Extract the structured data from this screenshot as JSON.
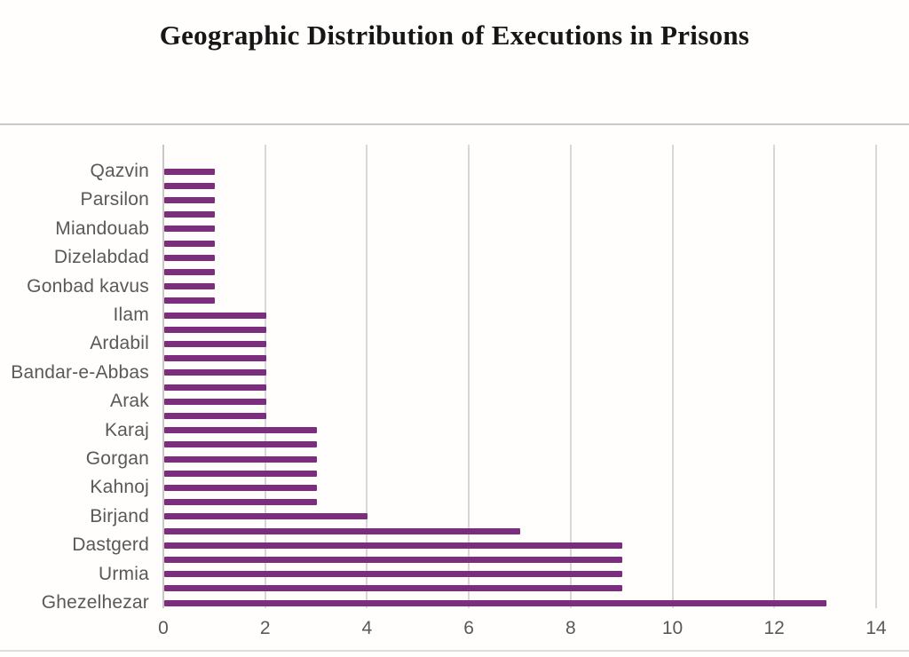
{
  "page": {
    "background": "#FFFFFF"
  },
  "chart_data": {
    "type": "bar",
    "orientation": "horizontal",
    "title": "Geographic Distribution of Executions in Prisons",
    "xlabel": "",
    "ylabel": "",
    "xlim": [
      0,
      14
    ],
    "x_ticks": [
      0,
      2,
      4,
      6,
      8,
      10,
      12,
      14
    ],
    "grid": true,
    "legend": "none",
    "label_skip": "category labels shown on every other bar",
    "bar_color": "#7B2D7E",
    "label_color": "#595959",
    "gridline_color": "#D7D7D7",
    "axisline_color": "#C7C7C7",
    "rows": [
      {
        "label": "Qazvin",
        "value": 1
      },
      {
        "label": "",
        "value": 1
      },
      {
        "label": "Parsilon",
        "value": 1
      },
      {
        "label": "",
        "value": 1
      },
      {
        "label": "Miandouab",
        "value": 1
      },
      {
        "label": "",
        "value": 1
      },
      {
        "label": "Dizelabdad",
        "value": 1
      },
      {
        "label": "",
        "value": 1
      },
      {
        "label": "Gonbad kavus",
        "value": 1
      },
      {
        "label": "",
        "value": 1
      },
      {
        "label": "Ilam",
        "value": 2
      },
      {
        "label": "",
        "value": 2
      },
      {
        "label": "Ardabil",
        "value": 2
      },
      {
        "label": "",
        "value": 2
      },
      {
        "label": "Bandar-e-Abbas",
        "value": 2
      },
      {
        "label": "",
        "value": 2
      },
      {
        "label": "Arak",
        "value": 2
      },
      {
        "label": "",
        "value": 2
      },
      {
        "label": "Karaj",
        "value": 3
      },
      {
        "label": "",
        "value": 3
      },
      {
        "label": "Gorgan",
        "value": 3
      },
      {
        "label": "",
        "value": 3
      },
      {
        "label": "Kahnoj",
        "value": 3
      },
      {
        "label": "",
        "value": 3
      },
      {
        "label": "Birjand",
        "value": 4
      },
      {
        "label": "",
        "value": 7
      },
      {
        "label": "Dastgerd",
        "value": 9
      },
      {
        "label": "",
        "value": 9
      },
      {
        "label": "Urmia",
        "value": 9
      },
      {
        "label": "",
        "value": 9
      },
      {
        "label": "Ghezelhezar",
        "value": 13
      }
    ]
  }
}
